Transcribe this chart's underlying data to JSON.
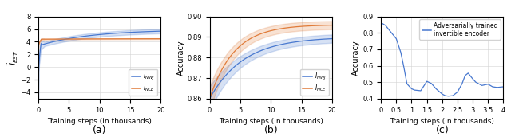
{
  "fig_width": 6.4,
  "fig_height": 1.72,
  "dpi": 100,
  "panel_a": {
    "title": "(a)",
    "xlabel": "Training steps (in thousands)",
    "ylabel": "$\\hat{I}_{EST}$",
    "xlim": [
      0,
      20
    ],
    "ylim": [
      -5,
      8
    ],
    "yticks": [
      -4,
      -2,
      0,
      2,
      4,
      6,
      8
    ],
    "xticks": [
      0,
      5,
      10,
      15,
      20
    ],
    "nwj_color": "#4878cf",
    "nce_color": "#e07b39",
    "legend_labels": [
      "$I_{NWJ}$",
      "$I_{NCE}$"
    ]
  },
  "panel_b": {
    "title": "(b)",
    "xlabel": "Training steps (in thousands)",
    "ylabel": "Accuracy",
    "xlim": [
      0,
      20
    ],
    "ylim": [
      0.86,
      0.9
    ],
    "yticks": [
      0.86,
      0.87,
      0.88,
      0.89,
      0.9
    ],
    "xticks": [
      0,
      5,
      10,
      15,
      20
    ],
    "nwj_color": "#4878cf",
    "nce_color": "#e07b39",
    "legend_labels": [
      "$I_{NWJ}$",
      "$I_{NCE}$"
    ]
  },
  "panel_c": {
    "title": "(c)",
    "xlabel": "Training steps (in thousands)",
    "ylabel": "Accuracy",
    "xlim": [
      0,
      4
    ],
    "ylim": [
      0.4,
      0.9
    ],
    "yticks": [
      0.4,
      0.5,
      0.6,
      0.7,
      0.8,
      0.9
    ],
    "xticks": [
      0,
      0.5,
      1.0,
      1.5,
      2.0,
      2.5,
      3.0,
      3.5,
      4.0
    ],
    "xtick_labels": [
      "0",
      "0.5",
      "1",
      "1.5",
      "2",
      "2.5",
      "3",
      "3.5",
      "4"
    ],
    "line_color": "#4878cf",
    "legend_label": "Adversarially trained\ninvertible encoder"
  }
}
